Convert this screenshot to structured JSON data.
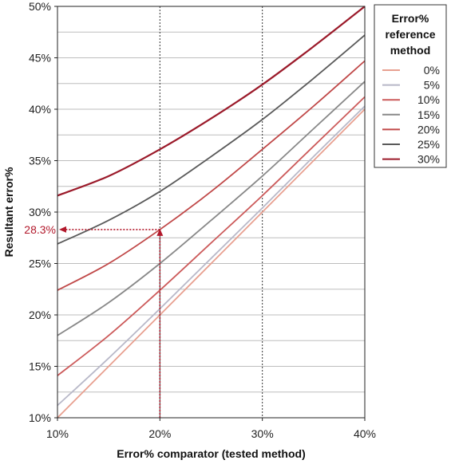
{
  "chart_data": {
    "type": "line",
    "xlabel": "Error% comparator (tested method)",
    "ylabel": "Resultant error%",
    "xlim": [
      10,
      40
    ],
    "ylim": [
      10,
      50
    ],
    "x_ticks": [
      "10%",
      "20%",
      "30%",
      "40%"
    ],
    "y_ticks": [
      "10%",
      "15%",
      "20%",
      "25%",
      "30%",
      "35%",
      "40%",
      "45%",
      "50%"
    ],
    "grid": "horizontal every 2.5%, dotted vertical at each x tick",
    "legend": {
      "title": "Error% reference method",
      "title_lines": [
        "Error%",
        "reference",
        "method"
      ],
      "placement": "right"
    },
    "x": [
      10,
      15,
      20,
      25,
      30,
      35,
      40
    ],
    "series": [
      {
        "name": "0%",
        "color": "#e8a090",
        "values": [
          10.0,
          15.0,
          20.0,
          25.0,
          30.0,
          35.0,
          40.0
        ]
      },
      {
        "name": "5%",
        "color": "#b8b8c8",
        "values": [
          11.2,
          15.8,
          20.6,
          25.5,
          30.4,
          35.4,
          40.3
        ]
      },
      {
        "name": "10%",
        "color": "#cc5a5a",
        "values": [
          14.1,
          18.0,
          22.4,
          27.0,
          31.6,
          36.4,
          41.2
        ]
      },
      {
        "name": "15%",
        "color": "#888888",
        "values": [
          18.0,
          21.2,
          25.0,
          29.2,
          33.5,
          38.1,
          42.7
        ]
      },
      {
        "name": "20%",
        "color": "#c04848",
        "values": [
          22.4,
          25.0,
          28.3,
          32.0,
          36.1,
          40.3,
          44.7
        ]
      },
      {
        "name": "25%",
        "color": "#5a5a5a",
        "values": [
          26.9,
          29.2,
          32.0,
          35.4,
          39.0,
          43.0,
          47.2
        ]
      },
      {
        "name": "30%",
        "color": "#9b1a2a",
        "values": [
          31.6,
          33.5,
          36.1,
          39.1,
          42.4,
          46.1,
          50.0
        ]
      }
    ],
    "annotation": {
      "label": "28.3%",
      "x": 20,
      "y": 28.3,
      "color": "#b2182b"
    }
  }
}
